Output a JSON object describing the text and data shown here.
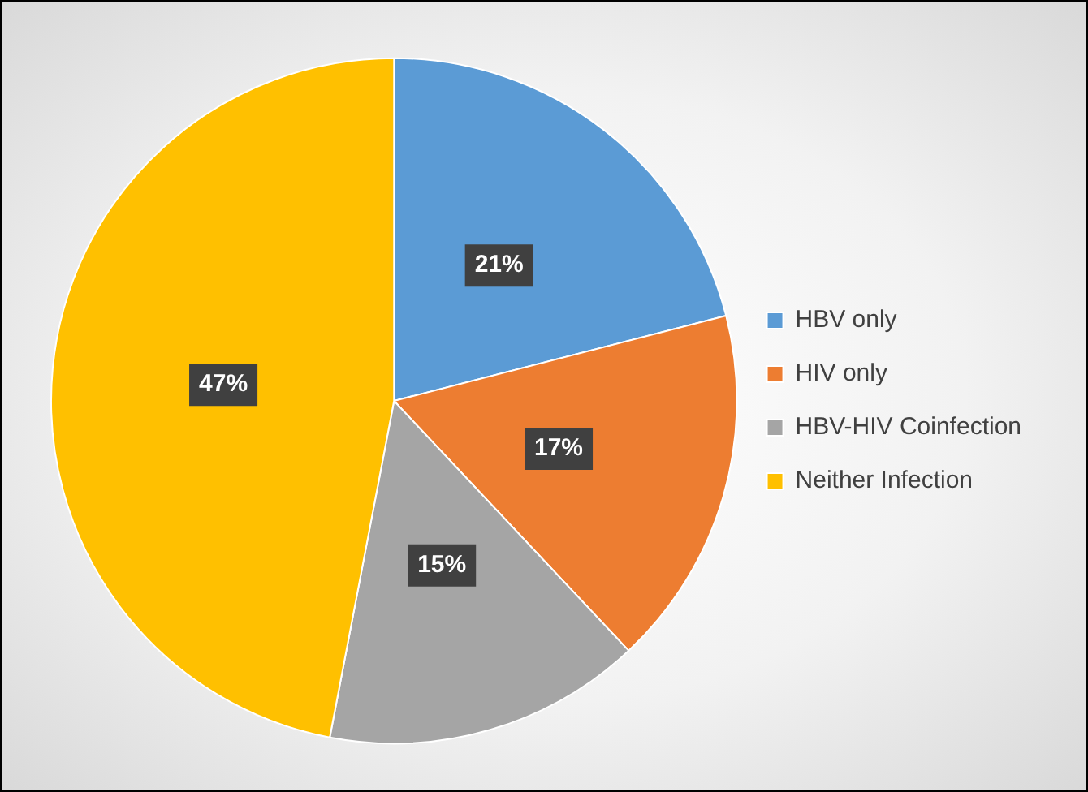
{
  "chart_data": {
    "type": "pie",
    "categories": [
      "HBV only",
      "HIV only",
      "HBV-HIV Coinfection",
      "Neither Infection"
    ],
    "values": [
      21,
      17,
      15,
      47
    ],
    "colors": [
      "#5b9bd5",
      "#ed7d31",
      "#a5a5a5",
      "#ffc000"
    ],
    "value_labels": [
      "21%",
      "17%",
      "15%",
      "47%"
    ],
    "legend": "right"
  }
}
